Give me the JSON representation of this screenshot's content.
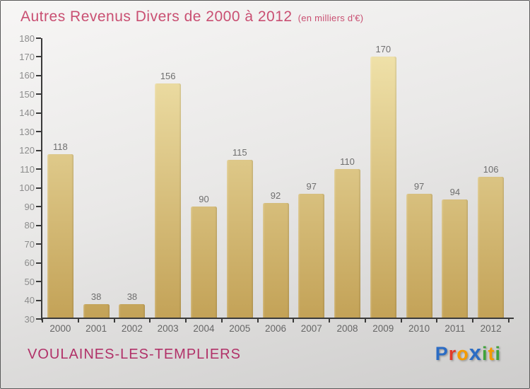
{
  "title": {
    "text": "Autres Revenus Divers de 2000 à 2012",
    "subtitle": "(en milliers d'€)"
  },
  "chart_data": {
    "type": "bar",
    "title": "Autres Revenus Divers de 2000 à 2012",
    "subtitle": "(en milliers d'€)",
    "categories": [
      "2000",
      "2001",
      "2002",
      "2003",
      "2004",
      "2005",
      "2006",
      "2007",
      "2008",
      "2009",
      "2010",
      "2011",
      "2012"
    ],
    "values": [
      118,
      38,
      38,
      156,
      90,
      115,
      92,
      97,
      110,
      170,
      97,
      94,
      106
    ],
    "xlabel": "",
    "ylabel": "",
    "ylim": [
      30,
      180
    ],
    "ytick_step": 10,
    "grid": false,
    "legend": "none",
    "bar_labels_shown": true
  },
  "footer": {
    "location": "VOULAINES-LES-TEMPLIERS",
    "logo": {
      "word": "Proxiti",
      "letters": [
        {
          "ch": "P",
          "color": "#2b6cc4",
          "big": false
        },
        {
          "ch": "r",
          "color": "#e23a2a",
          "big": false
        },
        {
          "ch": "o",
          "color": "#f59b00",
          "big": false
        },
        {
          "ch": "x",
          "color": "#2b6cc4",
          "big": true
        },
        {
          "ch": "i",
          "color": "#3fa33a",
          "big": false
        },
        {
          "ch": "t",
          "color": "#f59b00",
          "big": false
        },
        {
          "ch": "i",
          "color": "#3fa33a",
          "big": false
        }
      ]
    }
  },
  "colors": {
    "title": "#c94f72",
    "location": "#b13168",
    "axis": "#3a3a3a",
    "tick_label": "#8c8c8c",
    "value_label": "#6e6e6e",
    "year_label": "#666666",
    "bar_top": "#f2e5ae",
    "bar_bottom": "#c3a257",
    "background_top": "#f7f6f5",
    "background_bottom": "#cecdcc",
    "border": "#5a5a5a"
  }
}
